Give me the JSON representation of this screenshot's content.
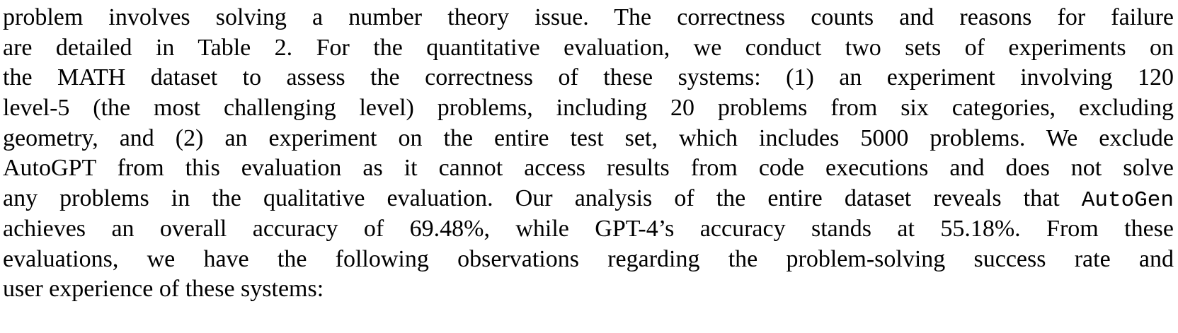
{
  "paragraph": {
    "lines": [
      {
        "text": "problem involves solving a number theory issue.  The correctness counts and reasons for failure"
      },
      {
        "text": "are detailed in Table 2.  For the quantitative evaluation, we conduct two sets of experiments on"
      },
      {
        "text": "the MATH dataset to assess the correctness of these systems:  (1) an experiment involving 120"
      },
      {
        "text": "level-5 (the most challenging level) problems, including 20 problems from six categories, excluding"
      },
      {
        "text": "geometry, and (2) an experiment on the entire test set, which includes 5000 problems.  We exclude"
      },
      {
        "text": "AutoGPT from this evaluation as it cannot access results from code executions and does not solve"
      },
      {
        "pre": "any problems in the qualitative evaluation.  Our analysis of the entire dataset reveals that ",
        "code": "AutoGen"
      },
      {
        "text": "achieves an overall accuracy of 69.48%, while GPT-4’s accuracy stands at 55.18%.  From these"
      },
      {
        "text": "evaluations, we have the following observations regarding the problem-solving success rate and"
      },
      {
        "text": "user experience of these systems:"
      }
    ]
  }
}
